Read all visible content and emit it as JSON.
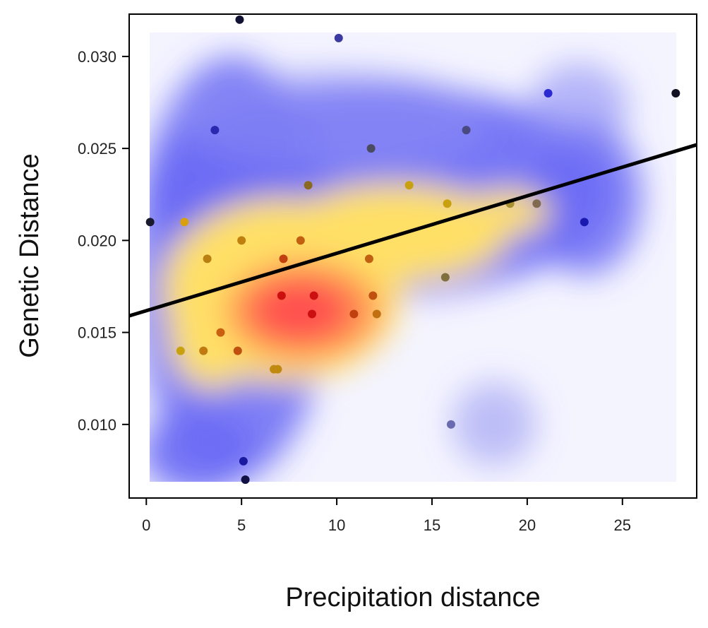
{
  "chart_data": {
    "type": "scatter",
    "title": "",
    "xlabel": "Precipitation distance",
    "ylabel": "Genetic Distance",
    "xlim": [
      -0.9,
      28.9
    ],
    "ylim": [
      0.006,
      0.0323
    ],
    "x_ticks": [
      0,
      5,
      10,
      15,
      20,
      25
    ],
    "x_tick_labels": [
      "0",
      "5",
      "10",
      "15",
      "20",
      "25"
    ],
    "y_ticks": [
      0.01,
      0.015,
      0.02,
      0.025,
      0.03
    ],
    "y_tick_labels": [
      "0.010",
      "0.015",
      "0.020",
      "0.025",
      "0.030"
    ],
    "grid": false,
    "density_background": true,
    "density_colors": [
      "#ffffff",
      "#6a6af5",
      "#ffe066",
      "#ff5050"
    ],
    "regression_line": {
      "x": [
        -0.9,
        28.9
      ],
      "y": [
        0.0159,
        0.0252
      ],
      "color": "#000000"
    },
    "points": [
      {
        "x": 0.2,
        "y": 0.021,
        "color": "#1a1a2e"
      },
      {
        "x": 1.8,
        "y": 0.014,
        "color": "#c9a010"
      },
      {
        "x": 2.0,
        "y": 0.021,
        "color": "#d8a010"
      },
      {
        "x": 3.0,
        "y": 0.014,
        "color": "#c07a10"
      },
      {
        "x": 3.2,
        "y": 0.019,
        "color": "#b88010"
      },
      {
        "x": 3.6,
        "y": 0.026,
        "color": "#2a2ab0"
      },
      {
        "x": 3.9,
        "y": 0.015,
        "color": "#c86010"
      },
      {
        "x": 4.8,
        "y": 0.014,
        "color": "#c05010"
      },
      {
        "x": 4.9,
        "y": 0.032,
        "color": "#111133"
      },
      {
        "x": 5.0,
        "y": 0.02,
        "color": "#c08010"
      },
      {
        "x": 5.1,
        "y": 0.008,
        "color": "#1a1aa0"
      },
      {
        "x": 5.2,
        "y": 0.007,
        "color": "#111144"
      },
      {
        "x": 6.7,
        "y": 0.013,
        "color": "#c08a10"
      },
      {
        "x": 6.9,
        "y": 0.013,
        "color": "#c08a10"
      },
      {
        "x": 7.1,
        "y": 0.017,
        "color": "#cc1010"
      },
      {
        "x": 7.2,
        "y": 0.019,
        "color": "#c04010"
      },
      {
        "x": 8.1,
        "y": 0.02,
        "color": "#c06010"
      },
      {
        "x": 8.5,
        "y": 0.023,
        "color": "#8a6a20"
      },
      {
        "x": 8.7,
        "y": 0.016,
        "color": "#cc1010"
      },
      {
        "x": 8.8,
        "y": 0.017,
        "color": "#cc1010"
      },
      {
        "x": 10.1,
        "y": 0.031,
        "color": "#3a3aa0"
      },
      {
        "x": 10.9,
        "y": 0.016,
        "color": "#c04010"
      },
      {
        "x": 11.7,
        "y": 0.019,
        "color": "#c06010"
      },
      {
        "x": 11.8,
        "y": 0.025,
        "color": "#4a4a60"
      },
      {
        "x": 11.9,
        "y": 0.017,
        "color": "#c05010"
      },
      {
        "x": 12.1,
        "y": 0.016,
        "color": "#c07010"
      },
      {
        "x": 13.8,
        "y": 0.023,
        "color": "#c8a010"
      },
      {
        "x": 15.7,
        "y": 0.018,
        "color": "#807040"
      },
      {
        "x": 15.8,
        "y": 0.022,
        "color": "#c8a010"
      },
      {
        "x": 16.0,
        "y": 0.01,
        "color": "#6a6ab0"
      },
      {
        "x": 16.8,
        "y": 0.026,
        "color": "#4a4a80"
      },
      {
        "x": 19.1,
        "y": 0.022,
        "color": "#a89030"
      },
      {
        "x": 20.5,
        "y": 0.022,
        "color": "#806a50"
      },
      {
        "x": 21.1,
        "y": 0.028,
        "color": "#2a2ad0"
      },
      {
        "x": 23.0,
        "y": 0.021,
        "color": "#1a1ab0"
      },
      {
        "x": 27.8,
        "y": 0.028,
        "color": "#111122"
      }
    ]
  }
}
